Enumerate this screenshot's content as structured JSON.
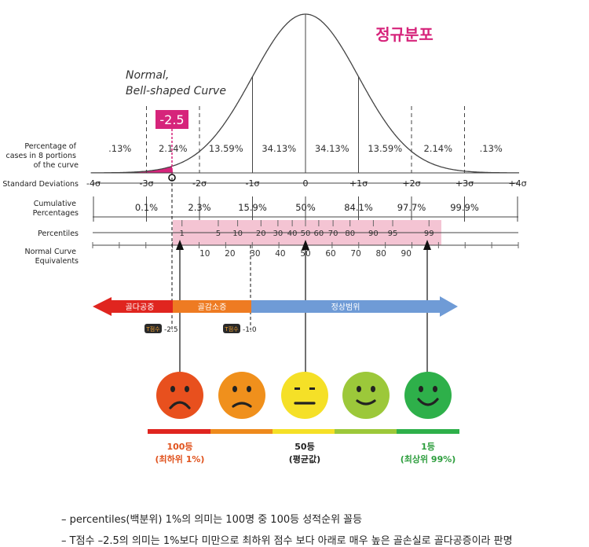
{
  "title": "정규분포",
  "curve_label": [
    "Normal,",
    "Bell-shaped Curve"
  ],
  "marker_value": "-2.5",
  "row_labels": {
    "percentage": [
      "Percentage of",
      "cases in 8 portions",
      "of the curve"
    ],
    "sd": "Standard Deviations",
    "cumulative": [
      "Cumulative",
      "Percentages"
    ],
    "percentiles": "Percentiles",
    "nce": [
      "Normal Curve",
      "Equivalents"
    ]
  },
  "portions": [
    ".13%",
    "2.14%",
    "13.59%",
    "34.13%",
    "34.13%",
    "13.59%",
    "2.14%",
    ".13%"
  ],
  "sd_ticks": [
    "-4σ",
    "-3σ",
    "-2σ",
    "-1σ",
    "0",
    "+1σ",
    "+2σ",
    "+3σ",
    "+4σ"
  ],
  "cumulative": [
    "0.1%",
    "2.3%",
    "15.9%",
    "50%",
    "84.1%",
    "97.7%",
    "99.9%"
  ],
  "percentiles": [
    "1",
    "5",
    "10",
    "20",
    "30",
    "40",
    "50",
    "60",
    "70",
    "80",
    "90",
    "95",
    "99"
  ],
  "nce": [
    "10",
    "20",
    "30",
    "40",
    "50",
    "60",
    "70",
    "80",
    "90"
  ],
  "ranges": {
    "left": "골다공증",
    "middle": "골감소증",
    "right": "정상범위",
    "tscore_badge": "T점수",
    "threshold_1": "-2.5",
    "threshold_2": "-1.0"
  },
  "faces": [
    {
      "name": "very-sad",
      "color": "#e8501e"
    },
    {
      "name": "sad",
      "color": "#f0901c"
    },
    {
      "name": "neutral",
      "color": "#f5e027"
    },
    {
      "name": "smile",
      "color": "#9cc83a"
    },
    {
      "name": "happy",
      "color": "#2eb04a"
    }
  ],
  "ranks": {
    "left_title": "100등",
    "left_sub": "(최하위 1%)",
    "mid_title": "50등",
    "mid_sub": "(평균값)",
    "right_title": "1등",
    "right_sub": "(최상위 99%)"
  },
  "colors": {
    "accent": "#d6247b",
    "pink_band": "#f4c4d3",
    "red_arrow": "#e0251f",
    "orange_arrow": "#ee7b22",
    "blue_arrow": "#6f9bd6",
    "rank_red": "#e0521d",
    "rank_green": "#2e9e3e"
  },
  "notes": [
    "– percentiles(백분위) 1%의 의미는 100명 중 100등 성적순위 꼴등",
    "– T점수 –2.5의 의미는 1%보다 미만으로 최하위 점수 보다 아래로 매우 높은 골손실로 골다공증이라 판명"
  ]
}
